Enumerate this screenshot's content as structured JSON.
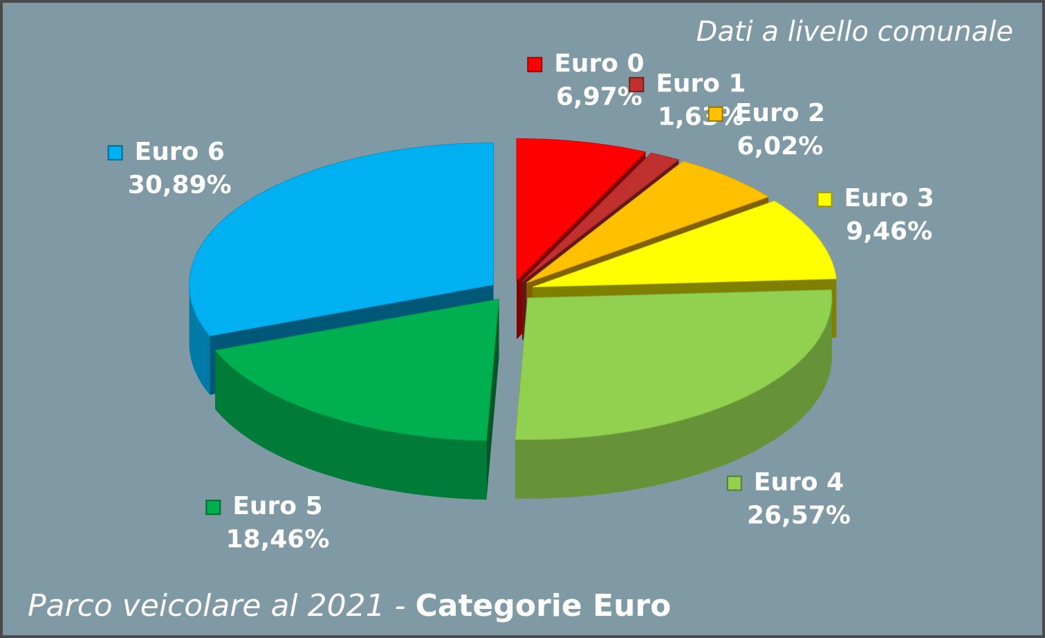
{
  "chart_data": {
    "type": "pie",
    "title": [
      "Parco veicolare al 2021 -",
      "Categorie Euro"
    ],
    "subtitle": "Dati a livello comunale",
    "categories": [
      "Euro 0",
      "Euro 1",
      "Euro 2",
      "Euro 3",
      "Euro 4",
      "Euro 5",
      "Euro 6"
    ],
    "values": [
      6.97,
      1.63,
      6.02,
      9.46,
      26.57,
      18.46,
      30.89
    ],
    "value_labels": [
      "6,97%",
      "1,63%",
      "6,02%",
      "9,46%",
      "26,57%",
      "18,46%",
      "30,89%"
    ],
    "colors": [
      "#ff0000",
      "#c0302f",
      "#ffc000",
      "#ffff00",
      "#92d050",
      "#00b050",
      "#00b0f0"
    ]
  }
}
